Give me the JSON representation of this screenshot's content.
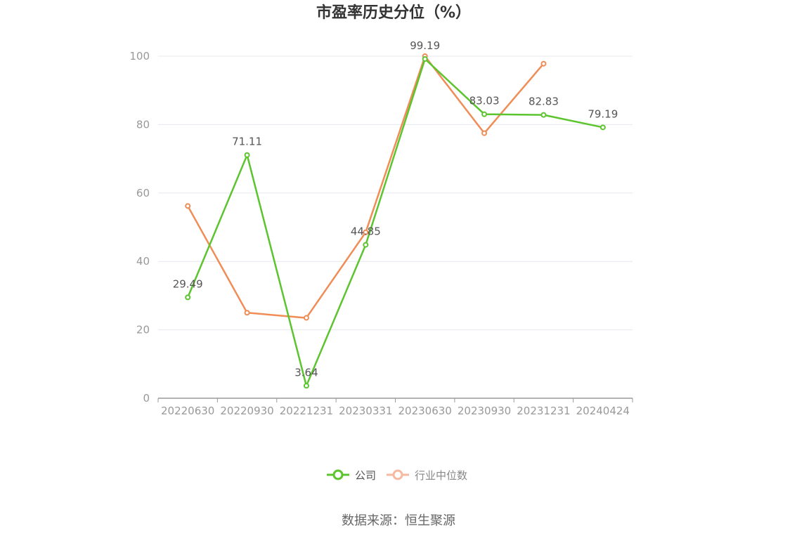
{
  "chart_data": {
    "type": "line",
    "title": "市盈率历史分位（%）",
    "categories": [
      "20220630",
      "20220930",
      "20221231",
      "20230331",
      "20230630",
      "20230930",
      "20231231",
      "20240424"
    ],
    "ylim": [
      0,
      100
    ],
    "yticks": [
      "0",
      "20",
      "40",
      "60",
      "80",
      "100"
    ],
    "grid": true,
    "legend_position": "bottom",
    "series": [
      {
        "name": "公司",
        "color": "#5cc42e",
        "values": [
          29.49,
          71.11,
          3.64,
          44.85,
          99.19,
          83.03,
          82.83,
          79.19
        ],
        "labels": [
          "29.49",
          "71.11",
          "3.64",
          "44.85",
          "99.19",
          "83.03",
          "82.83",
          "79.19"
        ]
      },
      {
        "name": "行业中位数",
        "color": "#f08c56",
        "legend_color": "#f7b9a0",
        "values": [
          56.2,
          25.0,
          23.5,
          48.5,
          100.0,
          77.5,
          97.8,
          null
        ]
      }
    ]
  },
  "source_text": "数据来源：恒生聚源"
}
